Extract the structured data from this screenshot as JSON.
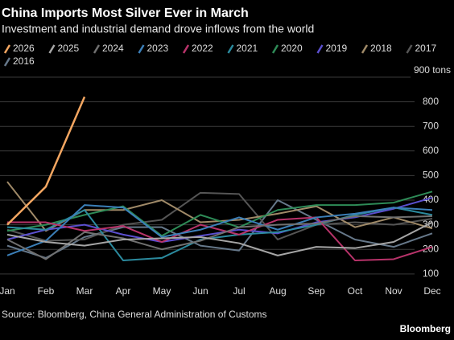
{
  "chart_data": {
    "type": "line",
    "title": "China Imports Most Silver Ever in March",
    "subtitle": "Investment and industrial demand drove inflows from the world",
    "source": "Source: Bloomberg, China General Administration of Customs",
    "brand": "Bloomberg",
    "categories": [
      "Jan",
      "Feb",
      "Mar",
      "Apr",
      "May",
      "Jun",
      "Jul",
      "Aug",
      "Sep",
      "Oct",
      "Nov",
      "Dec"
    ],
    "ylim": [
      70,
      900
    ],
    "yticks": [
      100,
      200,
      300,
      400,
      500,
      600,
      700,
      800,
      {
        "value": 900,
        "label": "900 tons"
      }
    ],
    "grid": true,
    "series": [
      {
        "name": "2026",
        "color": "#f3a661",
        "values": [
          300,
          455,
          820,
          null,
          null,
          null,
          null,
          null,
          null,
          null,
          null,
          null
        ]
      },
      {
        "name": "2025",
        "color": "#a6a6a6",
        "values": [
          260,
          230,
          215,
          240,
          245,
          250,
          225,
          175,
          210,
          205,
          230,
          310
        ]
      },
      {
        "name": "2024",
        "color": "#707070",
        "values": [
          240,
          160,
          270,
          245,
          200,
          235,
          290,
          300,
          305,
          335,
          330,
          335
        ]
      },
      {
        "name": "2023",
        "color": "#3b7fb8",
        "values": [
          175,
          235,
          380,
          370,
          250,
          280,
          330,
          280,
          330,
          345,
          370,
          360
        ]
      },
      {
        "name": "2022",
        "color": "#b8336a",
        "values": [
          310,
          310,
          275,
          295,
          230,
          300,
          260,
          320,
          330,
          155,
          160,
          210
        ]
      },
      {
        "name": "2021",
        "color": "#2b8a9e",
        "values": [
          290,
          280,
          360,
          155,
          165,
          240,
          260,
          270,
          300,
          340,
          370,
          340
        ]
      },
      {
        "name": "2020",
        "color": "#2e8b57",
        "values": [
          275,
          300,
          340,
          375,
          255,
          340,
          290,
          360,
          380,
          380,
          390,
          435
        ]
      },
      {
        "name": "2019",
        "color": "#5b4fcf",
        "values": [
          240,
          280,
          300,
          260,
          230,
          255,
          280,
          265,
          310,
          330,
          365,
          410
        ]
      },
      {
        "name": "2018",
        "color": "#a08a68",
        "values": [
          475,
          275,
          360,
          360,
          400,
          310,
          320,
          345,
          375,
          290,
          330,
          285
        ]
      },
      {
        "name": "2017",
        "color": "#555555",
        "values": [
          280,
          235,
          240,
          300,
          320,
          430,
          425,
          240,
          300,
          310,
          300,
          325
        ]
      },
      {
        "name": "2016",
        "color": "#66788a",
        "values": [
          215,
          165,
          250,
          290,
          290,
          215,
          195,
          400,
          320,
          240,
          210,
          265
        ]
      }
    ]
  }
}
